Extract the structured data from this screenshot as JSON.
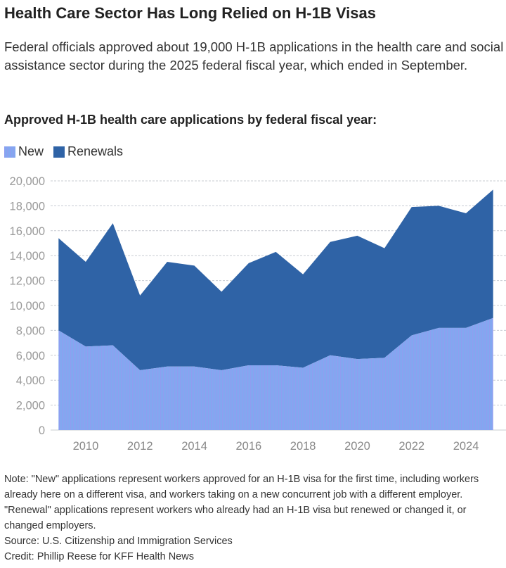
{
  "title": "Health Care Sector Has Long Relied on H-1B Visas",
  "subtitle": "Federal officials approved about 19,000 H-1B applications in the health care and social assistance sector during the 2025 federal fiscal year, which ended in September.",
  "chart_heading": "Approved H-1B health care applications by federal fiscal year:",
  "colors": {
    "new": "#82a8f0",
    "renewals": "#2f63a6"
  },
  "chart_data": {
    "type": "area",
    "stacked": true,
    "x": [
      2009,
      2010,
      2011,
      2012,
      2013,
      2014,
      2015,
      2016,
      2017,
      2018,
      2019,
      2020,
      2021,
      2022,
      2023,
      2024,
      2025
    ],
    "series": [
      {
        "name": "New",
        "values": [
          8000,
          6700,
          6800,
          4800,
          5100,
          5100,
          4800,
          5200,
          5200,
          5000,
          6000,
          5700,
          5800,
          7600,
          8200,
          8200,
          9000
        ]
      },
      {
        "name": "Renewals",
        "values": [
          7400,
          6800,
          9800,
          6000,
          8400,
          8100,
          6300,
          8200,
          9100,
          7500,
          9100,
          9900,
          8800,
          10300,
          9800,
          9200,
          10300
        ]
      }
    ],
    "ylim": [
      0,
      20000
    ],
    "yticks": [
      "0",
      "2,000",
      "4,000",
      "6,000",
      "8,000",
      "10,000",
      "12,000",
      "14,000",
      "16,000",
      "18,000",
      "20,000"
    ],
    "xticks": [
      "2010",
      "2012",
      "2014",
      "2016",
      "2018",
      "2020",
      "2022",
      "2024"
    ],
    "legend": "top-left",
    "grid": true
  },
  "notes": {
    "note": "Note: \"New\" applications represent workers approved for an H-1B visa for the first time, including workers already here on a different visa, and workers taking on a new concurrent job with a different employer. \"Renewal\" applications represent workers who already had an H-1B visa but renewed or changed it, or changed employers.",
    "source": "Source: U.S. Citizenship and Immigration Services",
    "credit": "Credit: Phillip Reese for KFF Health News"
  }
}
